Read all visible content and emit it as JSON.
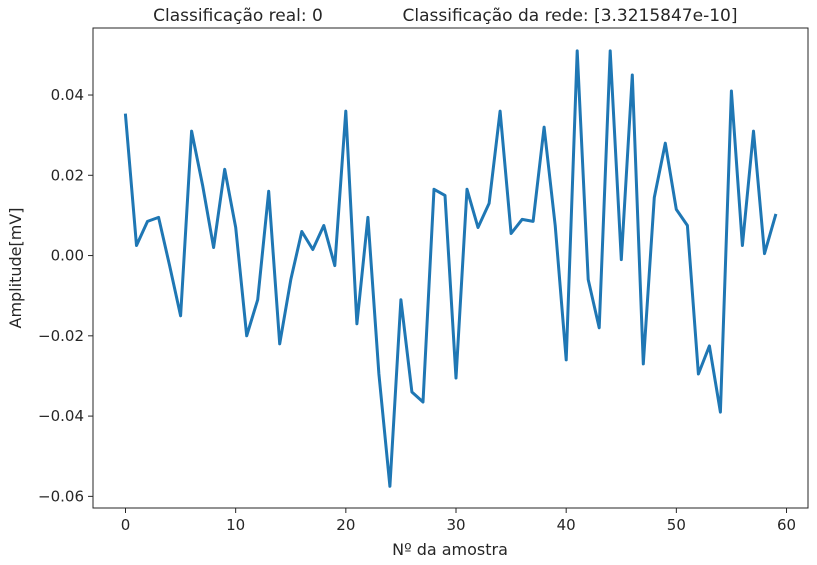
{
  "chart_data": {
    "type": "line",
    "title_left": "Classificação real: 0",
    "title_right": "Classificação da rede: [3.3215847e-10]",
    "xlabel": "Nº da amostra",
    "ylabel": "Amplitude[mV]",
    "xlim": [
      -2.95,
      61.95
    ],
    "ylim": [
      -0.0629,
      0.0567
    ],
    "xticks": [
      0,
      10,
      20,
      30,
      40,
      50,
      60
    ],
    "yticks": [
      -0.06,
      -0.04,
      -0.02,
      0.0,
      0.02,
      0.04
    ],
    "ytick_labels": [
      "−0.06",
      "−0.04",
      "−0.02",
      "0.00",
      "0.02",
      "0.04"
    ],
    "grid": false,
    "series": [
      {
        "color": "#1f77b4",
        "x": [
          0,
          1,
          2,
          3,
          4,
          5,
          6,
          7,
          8,
          9,
          10,
          11,
          12,
          13,
          14,
          15,
          16,
          17,
          18,
          19,
          20,
          21,
          22,
          23,
          24,
          25,
          26,
          27,
          28,
          29,
          30,
          31,
          32,
          33,
          34,
          35,
          36,
          37,
          38,
          39,
          40,
          41,
          42,
          43,
          44,
          45,
          46,
          47,
          48,
          49,
          50,
          51,
          52,
          53,
          54,
          55,
          56,
          57,
          58,
          59
        ],
        "values": [
          0.035,
          0.0025,
          0.0085,
          0.0095,
          -0.0025,
          -0.015,
          0.031,
          0.0175,
          0.002,
          0.0215,
          0.007,
          -0.02,
          -0.011,
          0.016,
          -0.022,
          -0.006,
          0.006,
          0.0015,
          0.0075,
          -0.0025,
          0.036,
          -0.017,
          0.0095,
          -0.0295,
          -0.0575,
          -0.011,
          -0.034,
          -0.0365,
          0.0165,
          0.015,
          -0.0305,
          0.0165,
          0.007,
          0.013,
          0.036,
          0.0055,
          0.009,
          0.0085,
          0.032,
          0.0075,
          -0.026,
          0.051,
          -0.006,
          -0.018,
          0.051,
          -0.001,
          0.045,
          -0.027,
          0.0145,
          0.028,
          0.0115,
          0.0075,
          -0.0295,
          -0.0225,
          -0.039,
          0.041,
          0.0025,
          0.031,
          0.0005,
          0.01
        ]
      }
    ]
  }
}
